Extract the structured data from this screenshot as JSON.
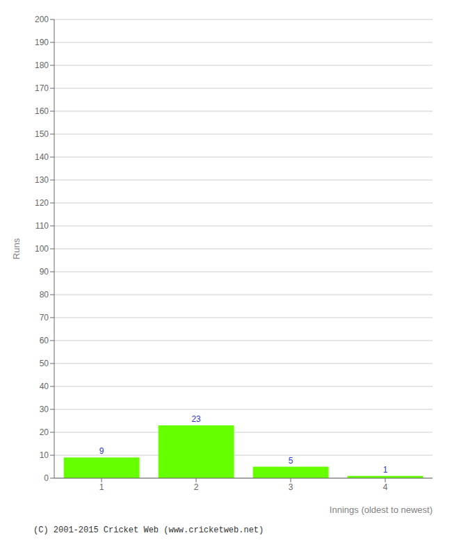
{
  "chart_data": {
    "type": "bar",
    "categories": [
      "1",
      "2",
      "3",
      "4"
    ],
    "values": [
      9,
      23,
      5,
      1
    ],
    "color": "#66ff00",
    "x_label": "Innings (oldest to newest)",
    "y_label": "Runs",
    "ylim": [
      0,
      200
    ],
    "yticks": [
      0,
      10,
      20,
      30,
      40,
      50,
      60,
      70,
      80,
      90,
      100,
      110,
      120,
      130,
      140,
      150,
      160,
      170,
      180,
      190,
      200
    ],
    "grid": true,
    "data_labels": true,
    "annotations": [
      "(C) 2001-2015 Cricket Web (www.cricketweb.net)"
    ]
  }
}
